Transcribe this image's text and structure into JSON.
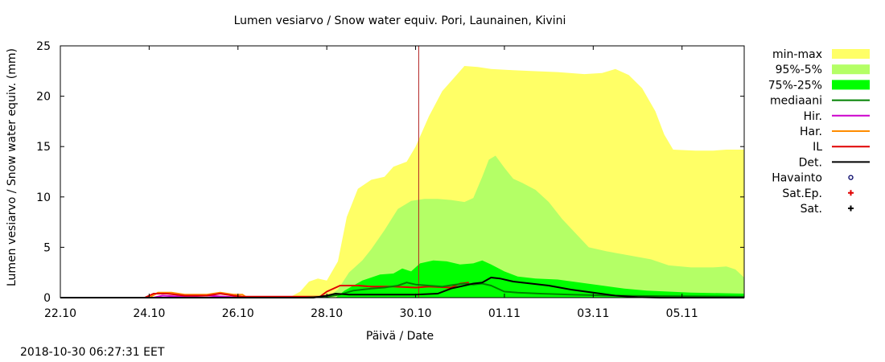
{
  "chart_data": {
    "type": "area",
    "title": "Lumen vesiarvo / Snow water equiv.  Pori, Launainen, Kivini",
    "xlabel": "Päivä / Date",
    "ylabel": "Lumen vesiarvo / Snow water equiv. (mm)",
    "timestamp": "2018-10-30 06:27:31 EET",
    "xlim": [
      0,
      15.4
    ],
    "ylim": [
      0,
      25
    ],
    "x_ticks": [
      {
        "x": 0,
        "label": "22.10"
      },
      {
        "x": 2,
        "label": "24.10"
      },
      {
        "x": 4,
        "label": "26.10"
      },
      {
        "x": 6,
        "label": "28.10"
      },
      {
        "x": 8,
        "label": "30.10"
      },
      {
        "x": 10,
        "label": "01.11"
      },
      {
        "x": 12,
        "label": "03.11"
      },
      {
        "x": 14,
        "label": "05.11"
      }
    ],
    "y_ticks": [
      0,
      5,
      10,
      15,
      20,
      25
    ],
    "current_time_x": 8.07,
    "legend": [
      {
        "label": "min-max",
        "kind": "box",
        "color": "#ffff66"
      },
      {
        "label": "95%-5%",
        "kind": "box",
        "color": "#b4ff66"
      },
      {
        "label": "75%-25%",
        "kind": "box",
        "color": "#00ff00"
      },
      {
        "label": "mediaani",
        "kind": "line",
        "color": "#008000"
      },
      {
        "label": "Hir.",
        "kind": "line",
        "color": "#cc00cc"
      },
      {
        "label": "Har.",
        "kind": "line",
        "color": "#ff8c00"
      },
      {
        "label": "IL",
        "kind": "line",
        "color": "#e00000"
      },
      {
        "label": "Det.",
        "kind": "line",
        "color": "#000000"
      },
      {
        "label": "Havainto",
        "kind": "circle",
        "color": "#000066"
      },
      {
        "label": "Sat.Ep.",
        "kind": "plus",
        "color": "#e00000"
      },
      {
        "label": "Sat.",
        "kind": "plus",
        "color": "#000000"
      }
    ],
    "bands": [
      {
        "name": "min-max",
        "color": "#ffff66",
        "upper": [
          [
            5.15,
            0
          ],
          [
            5.4,
            0.6
          ],
          [
            5.6,
            1.6
          ],
          [
            5.8,
            1.9
          ],
          [
            6.0,
            1.7
          ],
          [
            6.25,
            3.6
          ],
          [
            6.45,
            8
          ],
          [
            6.7,
            10.8
          ],
          [
            7.0,
            11.7
          ],
          [
            7.3,
            12
          ],
          [
            7.5,
            13
          ],
          [
            7.8,
            13.5
          ],
          [
            8.0,
            15
          ],
          [
            8.3,
            18
          ],
          [
            8.6,
            20.5
          ],
          [
            8.9,
            22
          ],
          [
            9.1,
            23
          ],
          [
            9.4,
            22.9
          ],
          [
            9.7,
            22.7
          ],
          [
            10.1,
            22.6
          ],
          [
            10.6,
            22.5
          ],
          [
            11.2,
            22.4
          ],
          [
            11.8,
            22.2
          ],
          [
            12.2,
            22.3
          ],
          [
            12.5,
            22.7
          ],
          [
            12.8,
            22.1
          ],
          [
            13.1,
            20.8
          ],
          [
            13.4,
            18.5
          ],
          [
            13.6,
            16.2
          ],
          [
            13.8,
            14.7
          ],
          [
            14.3,
            14.6
          ],
          [
            14.7,
            14.6
          ],
          [
            15.0,
            14.7
          ],
          [
            15.4,
            14.7
          ]
        ],
        "lower": [
          [
            5.15,
            0
          ],
          [
            15.4,
            0
          ]
        ]
      },
      {
        "name": "95%-5%",
        "color": "#b4ff66",
        "upper": [
          [
            6.0,
            0
          ],
          [
            6.25,
            0.8
          ],
          [
            6.5,
            2.5
          ],
          [
            6.8,
            3.7
          ],
          [
            7.0,
            4.8
          ],
          [
            7.3,
            6.7
          ],
          [
            7.6,
            8.8
          ],
          [
            7.9,
            9.6
          ],
          [
            8.2,
            9.8
          ],
          [
            8.5,
            9.8
          ],
          [
            8.8,
            9.7
          ],
          [
            9.1,
            9.5
          ],
          [
            9.3,
            9.9
          ],
          [
            9.5,
            12
          ],
          [
            9.65,
            13.7
          ],
          [
            9.8,
            14.1
          ],
          [
            10.0,
            12.9
          ],
          [
            10.2,
            11.8
          ],
          [
            10.4,
            11.4
          ],
          [
            10.7,
            10.7
          ],
          [
            11.0,
            9.5
          ],
          [
            11.3,
            7.8
          ],
          [
            11.6,
            6.4
          ],
          [
            11.9,
            5
          ],
          [
            12.3,
            4.6
          ],
          [
            12.8,
            4.2
          ],
          [
            13.3,
            3.8
          ],
          [
            13.7,
            3.2
          ],
          [
            14.2,
            3
          ],
          [
            14.7,
            3
          ],
          [
            15.0,
            3.1
          ],
          [
            15.2,
            2.8
          ],
          [
            15.4,
            2
          ]
        ],
        "lower": [
          [
            6.0,
            0
          ],
          [
            15.4,
            0
          ]
        ]
      },
      {
        "name": "75%-25%",
        "color": "#00ff00",
        "upper": [
          [
            6.2,
            0
          ],
          [
            6.4,
            0.7
          ],
          [
            6.8,
            1.7
          ],
          [
            7.2,
            2.3
          ],
          [
            7.5,
            2.4
          ],
          [
            7.7,
            2.9
          ],
          [
            7.9,
            2.6
          ],
          [
            8.1,
            3.4
          ],
          [
            8.4,
            3.7
          ],
          [
            8.7,
            3.6
          ],
          [
            9.0,
            3.3
          ],
          [
            9.3,
            3.4
          ],
          [
            9.5,
            3.7
          ],
          [
            9.7,
            3.3
          ],
          [
            10.0,
            2.6
          ],
          [
            10.3,
            2.1
          ],
          [
            10.7,
            1.9
          ],
          [
            11.2,
            1.8
          ],
          [
            11.7,
            1.5
          ],
          [
            12.2,
            1.2
          ],
          [
            12.7,
            0.9
          ],
          [
            13.2,
            0.7
          ],
          [
            13.7,
            0.6
          ],
          [
            14.2,
            0.5
          ],
          [
            15.4,
            0.4
          ]
        ],
        "lower": [
          [
            6.2,
            0
          ],
          [
            15.4,
            0
          ]
        ]
      }
    ],
    "series": [
      {
        "name": "Hir.",
        "color": "#cc00cc",
        "points": [
          [
            2.1,
            0
          ],
          [
            2.3,
            0.2
          ],
          [
            2.7,
            0.1
          ],
          [
            3.3,
            0.2
          ],
          [
            3.7,
            0.1
          ],
          [
            4.1,
            0
          ]
        ]
      },
      {
        "name": "Har.",
        "color": "#ff8c00",
        "points": [
          [
            2.0,
            0
          ],
          [
            2.2,
            0.5
          ],
          [
            2.5,
            0.5
          ],
          [
            2.8,
            0.3
          ],
          [
            3.3,
            0.3
          ],
          [
            3.6,
            0.5
          ],
          [
            3.9,
            0.3
          ],
          [
            4.1,
            0.3
          ],
          [
            4.2,
            0
          ]
        ]
      },
      {
        "name": "IL",
        "color": "#e00000",
        "points": [
          [
            1.9,
            0
          ],
          [
            2.1,
            0.4
          ],
          [
            2.4,
            0.4
          ],
          [
            2.8,
            0.2
          ],
          [
            3.3,
            0.2
          ],
          [
            3.6,
            0.4
          ],
          [
            3.9,
            0.2
          ],
          [
            4.1,
            0.1
          ],
          [
            5.5,
            0.1
          ],
          [
            5.85,
            0.1
          ],
          [
            6.0,
            0.6
          ],
          [
            6.3,
            1.2
          ],
          [
            6.7,
            1.2
          ],
          [
            7.0,
            1.1
          ],
          [
            7.5,
            1.1
          ],
          [
            8.0,
            1.0
          ],
          [
            8.3,
            1.1
          ],
          [
            8.8,
            1.0
          ],
          [
            9.0,
            1.4
          ],
          [
            9.2,
            1.5
          ]
        ]
      },
      {
        "name": "mediaani",
        "color": "#008000",
        "points": [
          [
            0,
            0
          ],
          [
            5.5,
            0
          ],
          [
            6.0,
            0.1
          ],
          [
            6.3,
            0.3
          ],
          [
            6.6,
            0.7
          ],
          [
            7.0,
            0.9
          ],
          [
            7.3,
            1.0
          ],
          [
            7.6,
            1.2
          ],
          [
            7.8,
            1.5
          ],
          [
            8.0,
            1.3
          ],
          [
            8.3,
            1.2
          ],
          [
            8.6,
            1.1
          ],
          [
            8.9,
            1.3
          ],
          [
            9.1,
            1.4
          ],
          [
            9.3,
            1.3
          ],
          [
            9.5,
            1.4
          ],
          [
            9.7,
            1.2
          ],
          [
            10.0,
            0.6
          ],
          [
            10.3,
            0.5
          ],
          [
            10.8,
            0.4
          ],
          [
            11.5,
            0.3
          ],
          [
            12.5,
            0.2
          ],
          [
            13.5,
            0.15
          ],
          [
            15.4,
            0.1
          ]
        ]
      },
      {
        "name": "Det.",
        "color": "#000000",
        "points": [
          [
            0,
            0
          ],
          [
            5.7,
            0
          ],
          [
            6.0,
            0.2
          ],
          [
            6.2,
            0.4
          ],
          [
            6.5,
            0.3
          ],
          [
            7.0,
            0.3
          ],
          [
            7.5,
            0.3
          ],
          [
            8.0,
            0.3
          ],
          [
            8.5,
            0.4
          ],
          [
            8.8,
            0.9
          ],
          [
            9.1,
            1.2
          ],
          [
            9.3,
            1.4
          ],
          [
            9.5,
            1.5
          ],
          [
            9.7,
            2.0
          ],
          [
            9.9,
            1.9
          ],
          [
            10.2,
            1.6
          ],
          [
            10.6,
            1.4
          ],
          [
            11.0,
            1.2
          ],
          [
            11.5,
            0.8
          ],
          [
            12.0,
            0.5
          ],
          [
            12.5,
            0.2
          ],
          [
            13.0,
            0.05
          ],
          [
            13.5,
            0
          ],
          [
            15.4,
            0
          ]
        ]
      }
    ]
  }
}
